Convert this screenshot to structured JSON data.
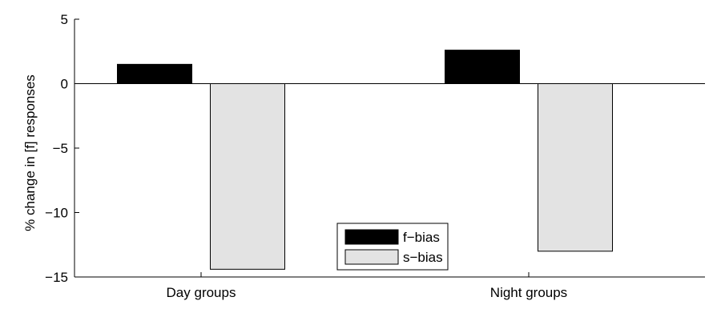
{
  "chart_data": {
    "type": "bar",
    "title": "",
    "xlabel": "",
    "ylabel": "% change in [f] responses",
    "categories": [
      "Day groups",
      "Night groups"
    ],
    "ylim": [
      -15,
      5
    ],
    "yticks": [
      5,
      0,
      -5,
      -10,
      -15
    ],
    "ytick_labels": [
      "5",
      "0",
      "−5",
      "−10",
      "−15"
    ],
    "grid": false,
    "legend_position": "bottom-center",
    "series": [
      {
        "name": "f−bias",
        "color": "#000000",
        "values": [
          1.5,
          2.6
        ]
      },
      {
        "name": "s−bias",
        "color": "#e3e3e3",
        "values": [
          -14.4,
          -13.0
        ]
      }
    ]
  }
}
